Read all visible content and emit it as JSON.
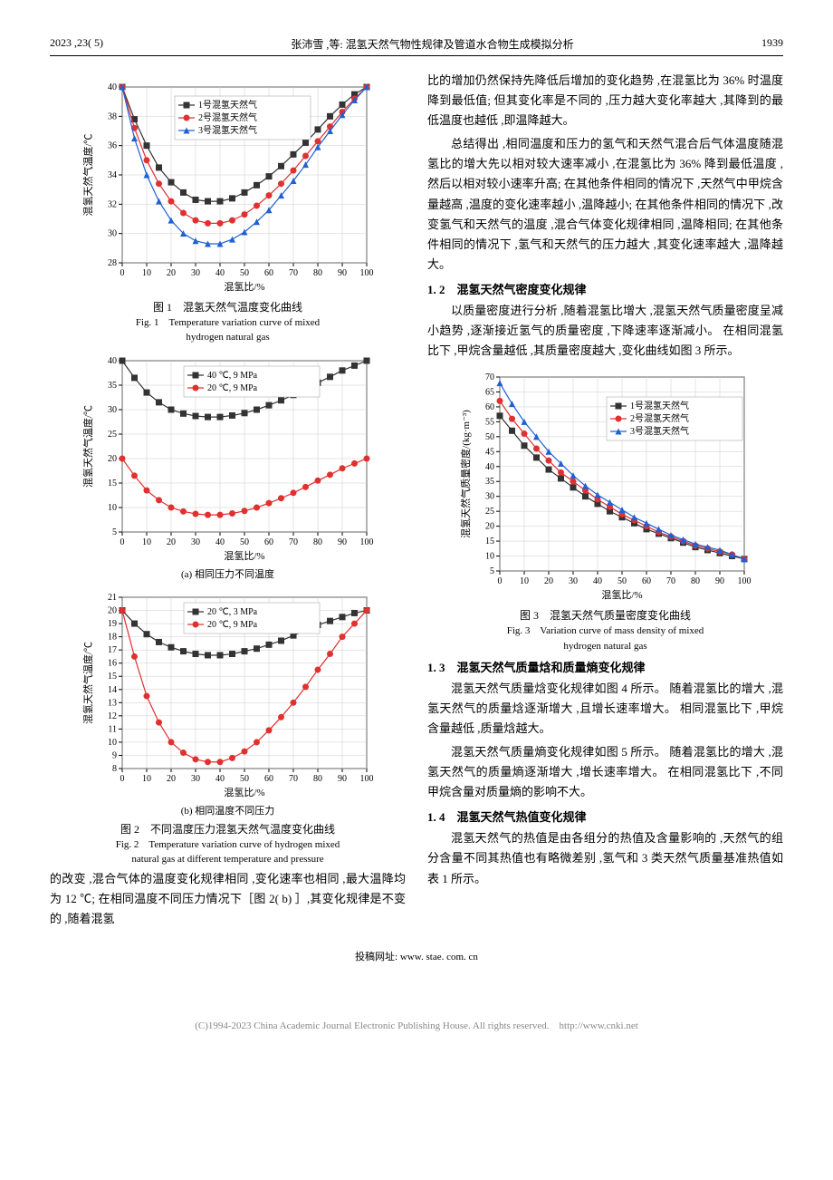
{
  "header": {
    "issue": "2023 ,23( 5)",
    "running_title": "张沛雪 ,等: 混氢天然气物性规律及管道水合物生成模拟分析",
    "page_no": "1939"
  },
  "fig1": {
    "type": "line",
    "caption_zh": "图 1　混氢天然气温度变化曲线",
    "caption_en_1": "Fig. 1　Temperature variation curve of mixed",
    "caption_en_2": "hydrogen natural gas",
    "xlabel": "混氢比/%",
    "ylabel": "混氢天然气温度/℃",
    "xlim": [
      0,
      100
    ],
    "ylim": [
      28,
      40
    ],
    "xtick_step": 10,
    "ytick_step": 2,
    "legend": [
      "1号混氢天然气",
      "2号混氢天然气",
      "3号混氢天然气"
    ],
    "colors": [
      "#333333",
      "#e03030",
      "#2060d0"
    ],
    "markers": [
      "square",
      "circle",
      "triangle"
    ],
    "grid_color": "#cccccc",
    "line_width": 1.2,
    "marker_size": 3.5,
    "series": [
      [
        [
          0,
          40
        ],
        [
          5,
          37.8
        ],
        [
          10,
          36
        ],
        [
          15,
          34.5
        ],
        [
          20,
          33.5
        ],
        [
          25,
          32.8
        ],
        [
          30,
          32.3
        ],
        [
          35,
          32.2
        ],
        [
          40,
          32.2
        ],
        [
          45,
          32.4
        ],
        [
          50,
          32.8
        ],
        [
          55,
          33.3
        ],
        [
          60,
          33.9
        ],
        [
          65,
          34.6
        ],
        [
          70,
          35.4
        ],
        [
          75,
          36.2
        ],
        [
          80,
          37.1
        ],
        [
          85,
          38
        ],
        [
          90,
          38.8
        ],
        [
          95,
          39.5
        ],
        [
          100,
          40
        ]
      ],
      [
        [
          0,
          40
        ],
        [
          5,
          37.2
        ],
        [
          10,
          35
        ],
        [
          15,
          33.4
        ],
        [
          20,
          32.2
        ],
        [
          25,
          31.4
        ],
        [
          30,
          30.9
        ],
        [
          35,
          30.7
        ],
        [
          40,
          30.7
        ],
        [
          45,
          30.9
        ],
        [
          50,
          31.3
        ],
        [
          55,
          31.9
        ],
        [
          60,
          32.6
        ],
        [
          65,
          33.4
        ],
        [
          70,
          34.3
        ],
        [
          75,
          35.3
        ],
        [
          80,
          36.3
        ],
        [
          85,
          37.3
        ],
        [
          90,
          38.3
        ],
        [
          95,
          39.2
        ],
        [
          100,
          40
        ]
      ],
      [
        [
          0,
          40
        ],
        [
          5,
          36.5
        ],
        [
          10,
          34
        ],
        [
          15,
          32.2
        ],
        [
          20,
          30.9
        ],
        [
          25,
          30
        ],
        [
          30,
          29.5
        ],
        [
          35,
          29.3
        ],
        [
          40,
          29.3
        ],
        [
          45,
          29.6
        ],
        [
          50,
          30.1
        ],
        [
          55,
          30.8
        ],
        [
          60,
          31.6
        ],
        [
          65,
          32.6
        ],
        [
          70,
          33.6
        ],
        [
          75,
          34.7
        ],
        [
          80,
          35.9
        ],
        [
          85,
          37
        ],
        [
          90,
          38.1
        ],
        [
          95,
          39.1
        ],
        [
          100,
          40
        ]
      ]
    ],
    "background": "#ffffff"
  },
  "fig2a": {
    "type": "line",
    "subcaption": "(a) 相同压力不同温度",
    "xlabel": "混氢比/%",
    "ylabel": "混氢天然气温度/℃",
    "xlim": [
      0,
      100
    ],
    "ylim": [
      5,
      40
    ],
    "xtick_step": 10,
    "ytick_step": 5,
    "legend": [
      "40 ℃, 9 MPa",
      "20 ℃, 9 MPa"
    ],
    "colors": [
      "#333333",
      "#e03030"
    ],
    "markers": [
      "square",
      "circle"
    ],
    "grid_color": "#cccccc",
    "line_width": 1.2,
    "marker_size": 3.5,
    "series": [
      [
        [
          0,
          40
        ],
        [
          5,
          36.5
        ],
        [
          10,
          33.5
        ],
        [
          15,
          31.5
        ],
        [
          20,
          30
        ],
        [
          25,
          29.2
        ],
        [
          30,
          28.7
        ],
        [
          35,
          28.5
        ],
        [
          40,
          28.5
        ],
        [
          45,
          28.8
        ],
        [
          50,
          29.3
        ],
        [
          55,
          30
        ],
        [
          60,
          30.9
        ],
        [
          65,
          31.9
        ],
        [
          70,
          33
        ],
        [
          75,
          34.2
        ],
        [
          80,
          35.5
        ],
        [
          85,
          36.7
        ],
        [
          90,
          38
        ],
        [
          95,
          39
        ],
        [
          100,
          40
        ]
      ],
      [
        [
          0,
          20
        ],
        [
          5,
          16.5
        ],
        [
          10,
          13.5
        ],
        [
          15,
          11.5
        ],
        [
          20,
          10
        ],
        [
          25,
          9.2
        ],
        [
          30,
          8.7
        ],
        [
          35,
          8.5
        ],
        [
          40,
          8.5
        ],
        [
          45,
          8.8
        ],
        [
          50,
          9.3
        ],
        [
          55,
          10
        ],
        [
          60,
          10.9
        ],
        [
          65,
          11.9
        ],
        [
          70,
          13
        ],
        [
          75,
          14.2
        ],
        [
          80,
          15.5
        ],
        [
          85,
          16.7
        ],
        [
          90,
          18
        ],
        [
          95,
          19
        ],
        [
          100,
          20
        ]
      ]
    ],
    "background": "#ffffff"
  },
  "fig2b": {
    "type": "line",
    "subcaption": "(b) 相同温度不同压力",
    "xlabel": "混氢比/%",
    "ylabel": "混氢天然气温度/℃",
    "xlim": [
      0,
      100
    ],
    "ylim": [
      8,
      21
    ],
    "xtick_step": 10,
    "ytick_step": 1,
    "legend": [
      "20 ℃, 3 MPa",
      "20 ℃, 9 MPa"
    ],
    "colors": [
      "#333333",
      "#e03030"
    ],
    "markers": [
      "square",
      "circle"
    ],
    "grid_color": "#cccccc",
    "line_width": 1.2,
    "marker_size": 3.5,
    "series": [
      [
        [
          0,
          20
        ],
        [
          5,
          19
        ],
        [
          10,
          18.2
        ],
        [
          15,
          17.6
        ],
        [
          20,
          17.2
        ],
        [
          25,
          16.9
        ],
        [
          30,
          16.7
        ],
        [
          35,
          16.6
        ],
        [
          40,
          16.6
        ],
        [
          45,
          16.7
        ],
        [
          50,
          16.9
        ],
        [
          55,
          17.1
        ],
        [
          60,
          17.4
        ],
        [
          65,
          17.7
        ],
        [
          70,
          18.1
        ],
        [
          75,
          18.5
        ],
        [
          80,
          18.9
        ],
        [
          85,
          19.2
        ],
        [
          90,
          19.5
        ],
        [
          95,
          19.8
        ],
        [
          100,
          20
        ]
      ],
      [
        [
          0,
          20
        ],
        [
          5,
          16.5
        ],
        [
          10,
          13.5
        ],
        [
          15,
          11.5
        ],
        [
          20,
          10
        ],
        [
          25,
          9.2
        ],
        [
          30,
          8.7
        ],
        [
          35,
          8.5
        ],
        [
          40,
          8.5
        ],
        [
          45,
          8.8
        ],
        [
          50,
          9.3
        ],
        [
          55,
          10
        ],
        [
          60,
          10.9
        ],
        [
          65,
          11.9
        ],
        [
          70,
          13
        ],
        [
          75,
          14.2
        ],
        [
          80,
          15.5
        ],
        [
          85,
          16.7
        ],
        [
          90,
          18
        ],
        [
          95,
          19
        ],
        [
          100,
          20
        ]
      ]
    ],
    "background": "#ffffff"
  },
  "fig2": {
    "caption_zh": "图 2　不同温度压力混氢天然气温度变化曲线",
    "caption_en_1": "Fig. 2　Temperature variation curve of hydrogen mixed",
    "caption_en_2": "natural gas at different temperature and pressure"
  },
  "fig3": {
    "type": "line",
    "caption_zh": "图 3　混氢天然气质量密度变化曲线",
    "caption_en_1": "Fig. 3　Variation curve of mass density of mixed",
    "caption_en_2": "hydrogen natural gas",
    "xlabel": "混氢比/%",
    "ylabel": "混氢天然气质量密度/(kg·m⁻³)",
    "xlim": [
      0,
      100
    ],
    "ylim": [
      5,
      70
    ],
    "xtick_step": 10,
    "ytick_step": 5,
    "legend": [
      "1号混氢天然气",
      "2号混氢天然气",
      "3号混氢天然气"
    ],
    "colors": [
      "#333333",
      "#e03030",
      "#2060d0"
    ],
    "markers": [
      "square",
      "circle",
      "triangle"
    ],
    "grid_color": "#cccccc",
    "line_width": 1.2,
    "marker_size": 3.5,
    "series": [
      [
        [
          0,
          57
        ],
        [
          5,
          52
        ],
        [
          10,
          47
        ],
        [
          15,
          43
        ],
        [
          20,
          39
        ],
        [
          25,
          36
        ],
        [
          30,
          33
        ],
        [
          35,
          30
        ],
        [
          40,
          27.5
        ],
        [
          45,
          25
        ],
        [
          50,
          23
        ],
        [
          55,
          21
        ],
        [
          60,
          19
        ],
        [
          65,
          17.5
        ],
        [
          70,
          16
        ],
        [
          75,
          14.5
        ],
        [
          80,
          13
        ],
        [
          85,
          12
        ],
        [
          90,
          11
        ],
        [
          95,
          10
        ],
        [
          100,
          9
        ]
      ],
      [
        [
          0,
          62
        ],
        [
          5,
          56
        ],
        [
          10,
          51
        ],
        [
          15,
          46
        ],
        [
          20,
          42
        ],
        [
          25,
          38
        ],
        [
          30,
          35
        ],
        [
          35,
          32
        ],
        [
          40,
          29
        ],
        [
          45,
          26.5
        ],
        [
          50,
          24
        ],
        [
          55,
          22
        ],
        [
          60,
          20
        ],
        [
          65,
          18
        ],
        [
          70,
          16.5
        ],
        [
          75,
          15
        ],
        [
          80,
          13.5
        ],
        [
          85,
          12.5
        ],
        [
          90,
          11.5
        ],
        [
          95,
          10.5
        ],
        [
          100,
          9
        ]
      ],
      [
        [
          0,
          68
        ],
        [
          5,
          61
        ],
        [
          10,
          55
        ],
        [
          15,
          50
        ],
        [
          20,
          45
        ],
        [
          25,
          41
        ],
        [
          30,
          37
        ],
        [
          35,
          33.5
        ],
        [
          40,
          30.5
        ],
        [
          45,
          28
        ],
        [
          50,
          25.5
        ],
        [
          55,
          23
        ],
        [
          60,
          21
        ],
        [
          65,
          19
        ],
        [
          70,
          17
        ],
        [
          75,
          15.5
        ],
        [
          80,
          14
        ],
        [
          85,
          13
        ],
        [
          90,
          12
        ],
        [
          95,
          10.5
        ],
        [
          100,
          9
        ]
      ]
    ],
    "background": "#ffffff"
  },
  "text": {
    "left_p1": "的改变 ,混合气体的温度变化规律相同 ,变化速率也相同 ,最大温降均为 12 ℃; 在相同温度不同压力情况下［图 2( b) ］,其变化规律是不变的 ,随着混氢",
    "right_p1": "比的增加仍然保持先降低后增加的变化趋势 ,在混氢比为 36% 时温度降到最低值; 但其变化率是不同的 ,压力越大变化率越大 ,其降到的最低温度也越低 ,即温降越大。",
    "right_p2": "总结得出 ,相同温度和压力的氢气和天然气混合后气体温度随混氢比的增大先以相对较大速率减小 ,在混氢比为 36% 降到最低温度 ,然后以相对较小速率升高; 在其他条件相同的情况下 ,天然气中甲烷含量越高 ,温度的变化速率越小 ,温降越小; 在其他条件相同的情况下 ,改变氢气和天然气的温度 ,混合气体变化规律相同 ,温降相同; 在其他条件相同的情况下 ,氢气和天然气的压力越大 ,其变化速率越大 ,温降越大。",
    "sec12": "1. 2　混氢天然气密度变化规律",
    "right_p3": "以质量密度进行分析 ,随着混氢比增大 ,混氢天然气质量密度呈减小趋势 ,逐渐接近氢气的质量密度 ,下降速率逐渐减小。 在相同混氢比下 ,甲烷含量越低 ,其质量密度越大 ,变化曲线如图 3 所示。",
    "sec13": "1. 3　混氢天然气质量焓和质量熵变化规律",
    "right_p4": "混氢天然气质量焓变化规律如图 4 所示。 随着混氢比的增大 ,混氢天然气的质量焓逐渐增大 ,且增长速率增大。 相同混氢比下 ,甲烷含量越低 ,质量焓越大。",
    "right_p5": "混氢天然气质量熵变化规律如图 5 所示。 随着混氢比的增大 ,混氢天然气的质量熵逐渐增大 ,增长速率增大。 在相同混氢比下 ,不同甲烷含量对质量熵的影响不大。",
    "sec14": "1. 4　混氢天然气热值变化规律",
    "right_p6": "混氢天然气的热值是由各组分的热值及含量影响的 ,天然气的组分含量不同其热值也有略微差别 ,氢气和 3 类天然气质量基准热值如表 1 所示。"
  },
  "footer": {
    "url": "投稿网址: www. stae. com. cn",
    "copyright": "(C)1994-2023 China Academic Journal Electronic Publishing House. All rights reserved.　http://www.cnki.net"
  }
}
